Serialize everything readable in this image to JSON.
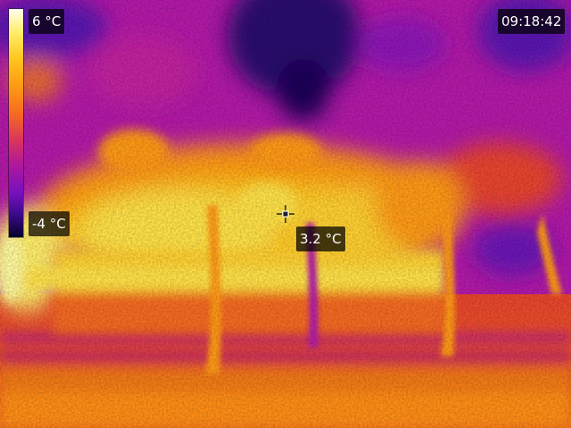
{
  "scale": {
    "max_label": "6 °C",
    "min_label": "-4 °C",
    "palette": [
      "#05022a",
      "#3a0a8a",
      "#7a11bf",
      "#b0199a",
      "#d8335e",
      "#f56a22",
      "#ff9a12",
      "#ffc51e",
      "#ffee6a",
      "#fffff0"
    ]
  },
  "clock": {
    "time": "09:18:42"
  },
  "spot": {
    "label": "3.2 °C",
    "icon": "crosshair-icon"
  }
}
